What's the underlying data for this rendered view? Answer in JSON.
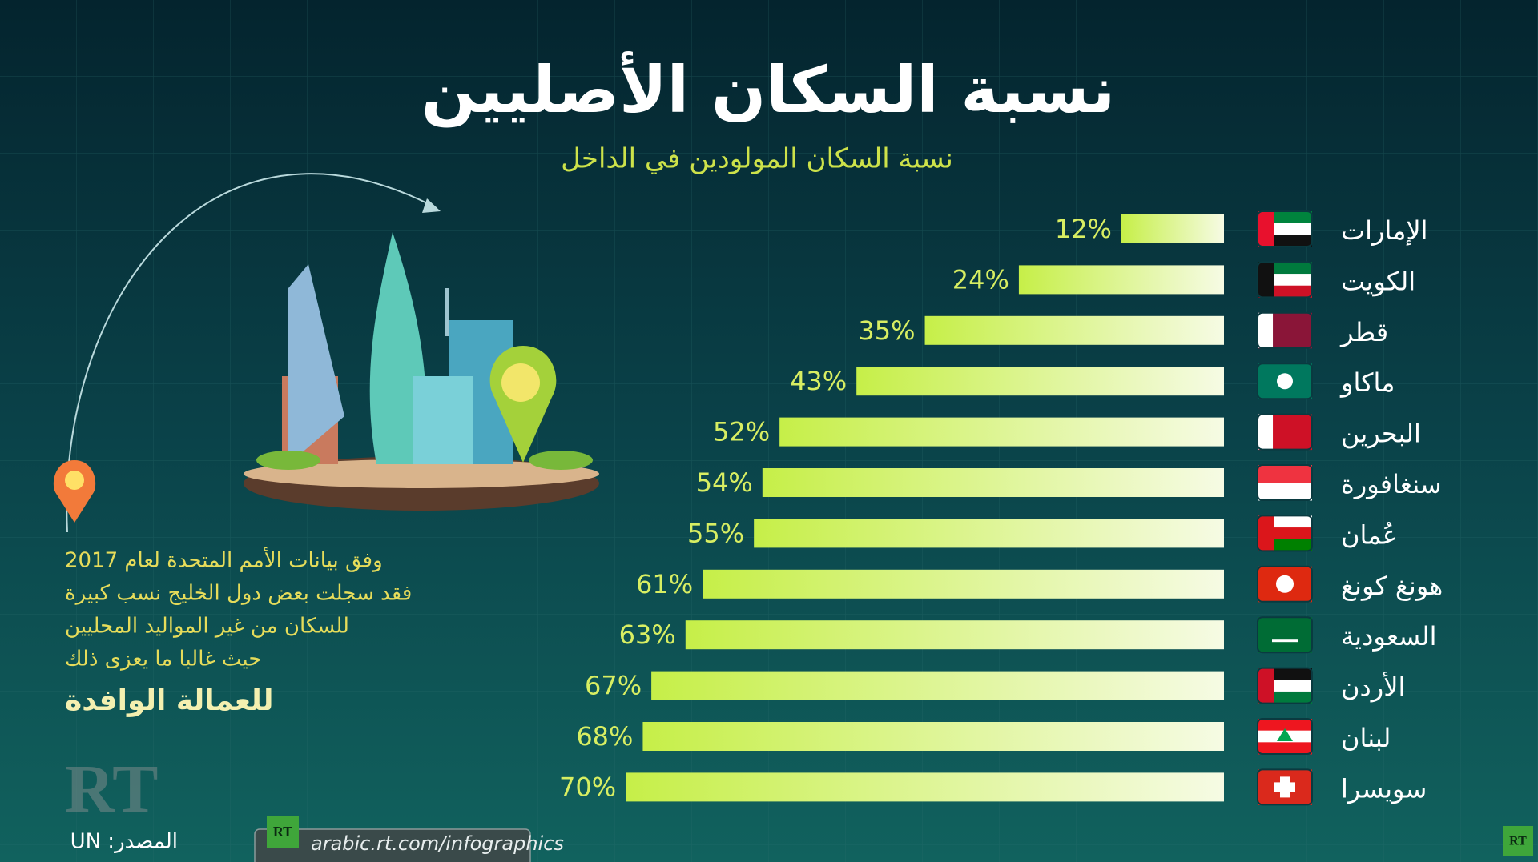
{
  "chart_data": {
    "type": "bar",
    "orientation": "horizontal",
    "title": "نسبة السكان الأصليين",
    "subtitle": "نسبة السكان المولودين في الداخل",
    "categories": [
      "الإمارات",
      "الكويت",
      "قطر",
      "ماكاو",
      "البحرين",
      "سنغافورة",
      "عُمان",
      "هونغ كونغ",
      "السعودية",
      "الأردن",
      "لبنان",
      "سويسرا"
    ],
    "values": [
      12,
      24,
      35,
      43,
      52,
      54,
      55,
      61,
      63,
      67,
      68,
      70
    ],
    "value_labels": [
      "12%",
      "24%",
      "35%",
      "43%",
      "52%",
      "54%",
      "55%",
      "61%",
      "63%",
      "67%",
      "68%",
      "70%"
    ],
    "color": "#c8f04a",
    "note": [
      "وفق بيانات الأمم المتحدة لعام 2017",
      "فقد سجلت بعض دول الخليج نسب كبيرة",
      "للسكان من غير المواليد المحليين",
      "حيث غالبا ما يعزى ذلك",
      "للعمالة الوافدة"
    ],
    "source": "المصدر: UN",
    "logo": "RT",
    "website": "arabic.rt.com/infographics"
  }
}
